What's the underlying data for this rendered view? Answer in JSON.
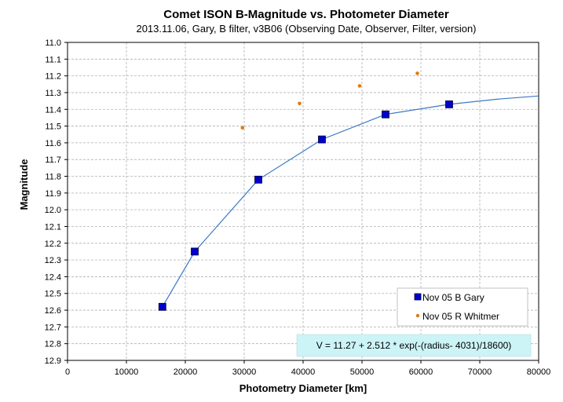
{
  "chart_data": {
    "type": "scatter",
    "title": "Comet ISON B-Magnitude  vs. Photometer Diameter",
    "subtitle": "2013.11.06,  Gary,  B filter,  v3B06 (Observing Date, Observer, Filter, version)",
    "xlabel": "Photometry Diameter  [km]",
    "ylabel": "Magnitude",
    "xlim": [
      0,
      80000
    ],
    "ylim": [
      11.0,
      12.9
    ],
    "y_inverted": true,
    "grid": true,
    "x_ticks": [
      "0",
      "10000",
      "20000",
      "30000",
      "40000",
      "50000",
      "60000",
      "70000",
      "80000"
    ],
    "y_ticks": [
      "11.0",
      "11.1",
      "11.2",
      "11.3",
      "11.4",
      "11.5",
      "11.6",
      "11.7",
      "11.8",
      "11.9",
      "12.0",
      "12.1",
      "12.2",
      "12.3",
      "12.4",
      "12.5",
      "12.6",
      "12.7",
      "12.8",
      "12.9"
    ],
    "legend_position": "bottom-right",
    "series": [
      {
        "name": "Nov 05 B Gary",
        "marker": "square",
        "color": "#0000cc",
        "x": [
          16100,
          21600,
          32400,
          43200,
          54000,
          64800
        ],
        "y": [
          12.58,
          12.25,
          11.82,
          11.58,
          11.43,
          11.37
        ]
      },
      {
        "name": "Nov 05 R Whitmer",
        "marker": "circle",
        "color": "#e07b10",
        "x": [
          29700,
          39400,
          49600,
          59400
        ],
        "y": [
          11.51,
          11.365,
          11.26,
          11.185
        ]
      }
    ],
    "fit_curve": {
      "color": "#3a78c4",
      "x": [
        16100,
        21600,
        32400,
        43200,
        54000,
        64800,
        72700,
        80000
      ],
      "y": [
        12.58,
        12.25,
        11.82,
        11.58,
        11.43,
        11.37,
        11.34,
        11.32
      ]
    },
    "annotation": "V = 11.27 + 2.512 * exp(-(radius- 4031)/18600)",
    "colors": {
      "grid": "#b0b0b0",
      "annotation_bg": "#ccf4f6"
    }
  }
}
